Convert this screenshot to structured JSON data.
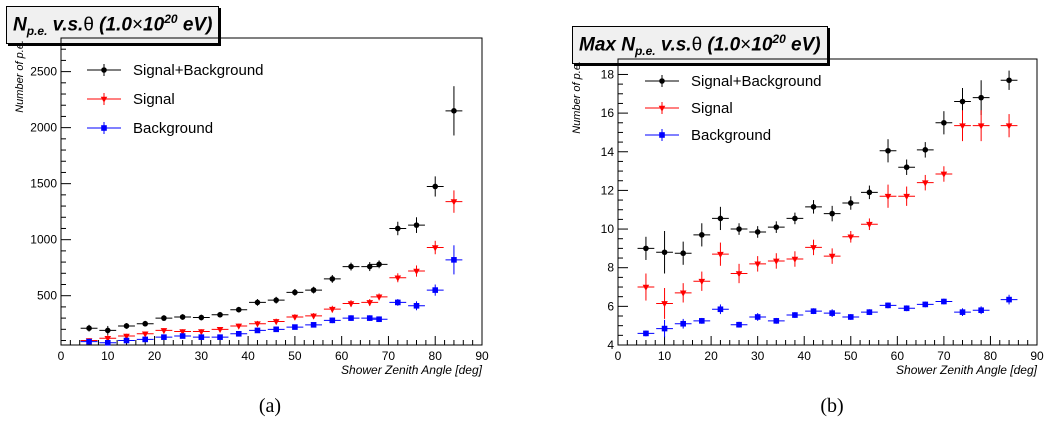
{
  "chart_data": [
    {
      "type": "scatter",
      "title": "N_p.e. v.s.θ (1.0×10^20 eV)",
      "title_parts": {
        "main": "N",
        "sub": "p.e.",
        "mid": " v.s.",
        "theta": "θ",
        "paren_open": " (1.0",
        "times": "×",
        "base": "10",
        "exp": "20",
        "unit": " eV)"
      },
      "xlabel": "Shower Zenith Angle [deg]",
      "ylabel": "Number of p.e.",
      "xlim": [
        0,
        90
      ],
      "ylim": [
        60,
        2800
      ],
      "x_ticks": [
        0,
        10,
        20,
        30,
        40,
        50,
        60,
        70,
        80,
        90
      ],
      "y_ticks": [
        500,
        1000,
        1500,
        2000,
        2500
      ],
      "x_error": 1.8,
      "legend_position": "top-left",
      "caption": "(a)",
      "series": [
        {
          "name": "Signal+Background",
          "marker": "circle",
          "color": "#000000",
          "x": [
            6,
            10,
            14,
            18,
            22,
            26,
            30,
            34,
            38,
            42,
            46,
            50,
            54,
            58,
            62,
            66,
            68,
            72,
            76,
            80,
            84
          ],
          "y": [
            210,
            190,
            230,
            250,
            300,
            310,
            305,
            330,
            375,
            440,
            460,
            530,
            550,
            650,
            760,
            760,
            780,
            1100,
            1130,
            1475,
            2150
          ],
          "err": [
            30,
            40,
            25,
            25,
            25,
            25,
            25,
            25,
            25,
            30,
            30,
            30,
            30,
            35,
            35,
            40,
            35,
            60,
            70,
            90,
            220
          ]
        },
        {
          "name": "Signal",
          "marker": "triangle-down",
          "color": "#ff0000",
          "x": [
            6,
            10,
            14,
            18,
            22,
            26,
            30,
            34,
            38,
            42,
            46,
            50,
            54,
            58,
            62,
            66,
            68,
            72,
            76,
            80,
            84
          ],
          "y": [
            100,
            120,
            140,
            160,
            190,
            180,
            180,
            200,
            230,
            250,
            270,
            310,
            320,
            380,
            430,
            440,
            490,
            660,
            720,
            930,
            1340
          ],
          "err": [
            20,
            30,
            20,
            20,
            20,
            20,
            20,
            20,
            20,
            25,
            25,
            25,
            25,
            30,
            30,
            30,
            30,
            40,
            50,
            60,
            100
          ]
        },
        {
          "name": "Background",
          "marker": "square",
          "color": "#0000ff",
          "x": [
            6,
            10,
            14,
            18,
            22,
            26,
            30,
            34,
            38,
            42,
            46,
            50,
            54,
            58,
            62,
            66,
            68,
            72,
            76,
            80,
            84
          ],
          "y": [
            90,
            80,
            100,
            110,
            130,
            140,
            130,
            130,
            160,
            190,
            200,
            220,
            240,
            280,
            300,
            300,
            290,
            440,
            410,
            550,
            820
          ],
          "err": [
            15,
            20,
            15,
            15,
            15,
            15,
            15,
            15,
            15,
            20,
            20,
            20,
            20,
            25,
            25,
            25,
            25,
            30,
            40,
            50,
            130
          ]
        }
      ]
    },
    {
      "type": "scatter",
      "title": "Max N_p.e. v.s.θ (1.0×10^20 eV)",
      "title_parts": {
        "main": "Max N",
        "sub": "p.e.",
        "mid": " v.s.",
        "theta": "θ",
        "paren_open": " (1.0",
        "times": "×",
        "base": "10",
        "exp": "20",
        "unit": " eV)"
      },
      "xlabel": "Shower Zenith Angle [deg]",
      "ylabel": "Number of p.e.",
      "xlim": [
        0,
        90
      ],
      "ylim": [
        4,
        18.8
      ],
      "x_ticks": [
        0,
        10,
        20,
        30,
        40,
        50,
        60,
        70,
        80,
        90
      ],
      "y_ticks": [
        4,
        6,
        8,
        10,
        12,
        14,
        16,
        18
      ],
      "x_error": 1.8,
      "legend_position": "top-left",
      "caption": "(b)",
      "series": [
        {
          "name": "Signal+Background",
          "marker": "circle",
          "color": "#000000",
          "x": [
            6,
            10,
            14,
            18,
            22,
            26,
            30,
            34,
            38,
            42,
            46,
            50,
            54,
            58,
            62,
            66,
            70,
            74,
            78,
            84
          ],
          "y": [
            9.0,
            8.8,
            8.75,
            9.7,
            10.55,
            10.0,
            9.85,
            10.1,
            10.55,
            11.15,
            10.8,
            11.35,
            11.9,
            14.05,
            13.2,
            14.1,
            15.5,
            16.6,
            16.8,
            17.7
          ],
          "err": [
            0.6,
            1.1,
            0.6,
            0.6,
            0.6,
            0.3,
            0.3,
            0.3,
            0.3,
            0.35,
            0.4,
            0.35,
            0.35,
            0.6,
            0.4,
            0.4,
            0.6,
            0.7,
            0.9,
            0.5
          ]
        },
        {
          "name": "Signal",
          "marker": "triangle-down",
          "color": "#ff0000",
          "x": [
            6,
            10,
            14,
            18,
            22,
            26,
            30,
            34,
            38,
            42,
            46,
            50,
            54,
            58,
            62,
            66,
            70,
            74,
            78,
            84
          ],
          "y": [
            7.0,
            6.15,
            6.7,
            7.3,
            8.7,
            7.7,
            8.2,
            8.35,
            8.45,
            9.05,
            8.6,
            9.6,
            10.25,
            11.7,
            11.7,
            12.4,
            12.85,
            15.35,
            15.35,
            15.35
          ],
          "err": [
            0.7,
            0.8,
            0.5,
            0.5,
            0.6,
            0.5,
            0.4,
            0.4,
            0.4,
            0.4,
            0.4,
            0.3,
            0.3,
            0.6,
            0.5,
            0.4,
            0.4,
            0.8,
            0.8,
            0.6
          ]
        },
        {
          "name": "Background",
          "marker": "square",
          "color": "#0000ff",
          "x": [
            6,
            10,
            14,
            18,
            22,
            26,
            30,
            34,
            38,
            42,
            46,
            50,
            54,
            58,
            62,
            66,
            70,
            74,
            78,
            84
          ],
          "y": [
            4.6,
            4.85,
            5.1,
            5.25,
            5.85,
            5.05,
            5.45,
            5.25,
            5.55,
            5.75,
            5.65,
            5.45,
            5.7,
            6.05,
            5.9,
            6.1,
            6.25,
            5.7,
            5.8,
            6.35
          ],
          "err": [
            0.15,
            0.45,
            0.25,
            0.15,
            0.25,
            0.15,
            0.2,
            0.15,
            0.15,
            0.15,
            0.2,
            0.15,
            0.15,
            0.15,
            0.15,
            0.15,
            0.15,
            0.2,
            0.2,
            0.25
          ]
        }
      ]
    }
  ]
}
